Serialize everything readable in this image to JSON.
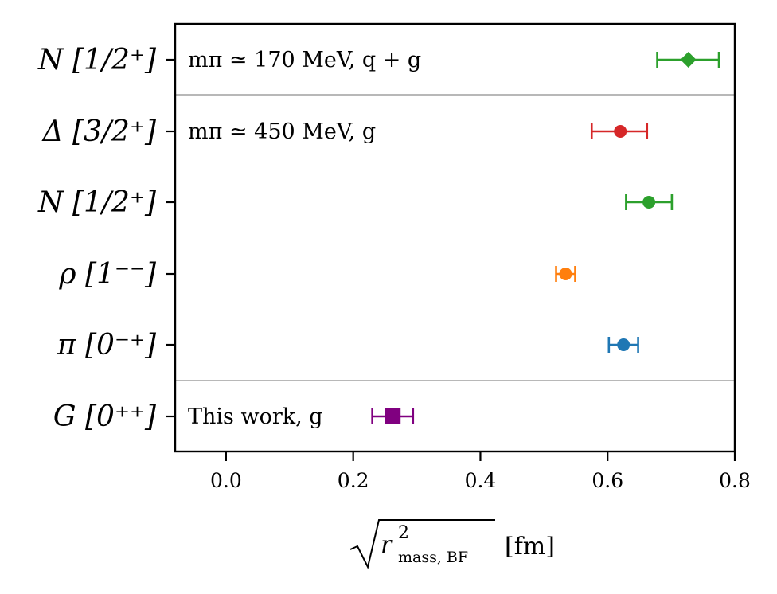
{
  "chart_data": {
    "type": "scatter",
    "xlim": [
      -0.08,
      0.8
    ],
    "x_ticks": [
      "0.0",
      "0.2",
      "0.4",
      "0.6",
      "0.8"
    ],
    "x_tick_values": [
      0.0,
      0.2,
      0.4,
      0.6,
      0.8
    ],
    "xlabel_radicand": "r",
    "xlabel_sup": "2",
    "xlabel_sub": "mass, BF",
    "xlabel_unit": "[fm]",
    "grid": false,
    "categories": [
      "N [1/2⁺]",
      "Δ [3/2⁺]",
      "N [1/2⁺]",
      "ρ [1⁻⁻]",
      "π [0⁻⁺]",
      "G [0⁺⁺]"
    ],
    "points": [
      {
        "label": "N [1/2⁺]",
        "value": 0.727,
        "err_low": 0.049,
        "err_high": 0.048,
        "color": "#2ca02c",
        "marker": "diamond"
      },
      {
        "label": "Δ [3/2⁺]",
        "value": 0.62,
        "err_low": 0.045,
        "err_high": 0.042,
        "color": "#d62728",
        "marker": "circle"
      },
      {
        "label": "N [1/2⁺]",
        "value": 0.665,
        "err_low": 0.036,
        "err_high": 0.036,
        "color": "#2ca02c",
        "marker": "circle"
      },
      {
        "label": "ρ [1⁻⁻]",
        "value": 0.534,
        "err_low": 0.015,
        "err_high": 0.015,
        "color": "#ff7f0e",
        "marker": "circle"
      },
      {
        "label": "π [0⁻⁺]",
        "value": 0.625,
        "err_low": 0.023,
        "err_high": 0.023,
        "color": "#1f77b4",
        "marker": "circle"
      },
      {
        "label": "G [0⁺⁺]",
        "value": 0.262,
        "err_low": 0.032,
        "err_high": 0.032,
        "color": "#800080",
        "marker": "square"
      }
    ],
    "annotations": [
      {
        "row": 0,
        "text": "mπ ≃ 170 MeV,  q + g"
      },
      {
        "row": 1,
        "text": "mπ ≃ 450 MeV,  g"
      },
      {
        "row": 5,
        "text": "This work, g"
      }
    ],
    "separator_color": "#a0a0a0"
  }
}
